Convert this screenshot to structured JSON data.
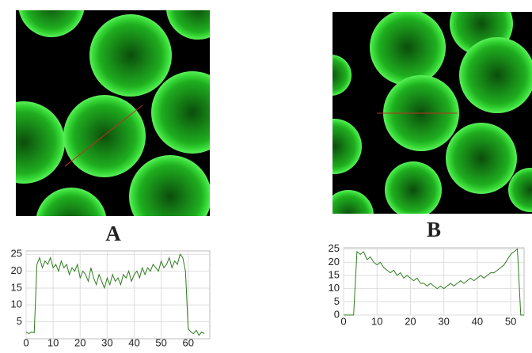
{
  "chart_data": [
    {
      "type": "line",
      "caption": "A",
      "color": "#2e7d1e",
      "x": [
        0,
        1,
        2,
        3,
        4,
        5,
        6,
        7,
        8,
        9,
        10,
        11,
        12,
        13,
        14,
        15,
        16,
        17,
        18,
        19,
        20,
        21,
        22,
        23,
        24,
        25,
        26,
        27,
        28,
        29,
        30,
        31,
        32,
        33,
        34,
        35,
        36,
        37,
        38,
        39,
        40,
        41,
        42,
        43,
        44,
        45,
        46,
        47,
        48,
        49,
        50,
        51,
        52,
        53,
        54,
        55,
        56,
        57,
        58,
        59,
        60,
        61,
        62,
        63,
        64,
        65,
        66
      ],
      "values": [
        2,
        1.5,
        2,
        1.8,
        22,
        24,
        21,
        23,
        22,
        24,
        21,
        22,
        20,
        23,
        21,
        22,
        19,
        21,
        20,
        22,
        18,
        20,
        19,
        17,
        21,
        18,
        16,
        19,
        17,
        15,
        18,
        16,
        19,
        17,
        18,
        16,
        19,
        18,
        20,
        17,
        19,
        20,
        18,
        21,
        19,
        21,
        20,
        22,
        21,
        20,
        23,
        21,
        22,
        24,
        21,
        23,
        22,
        25,
        24,
        20,
        3,
        2,
        1.5,
        2.5,
        1,
        2,
        1.5
      ],
      "xlim": [
        0,
        68
      ],
      "ylim": [
        0,
        26
      ],
      "xticks": [
        0,
        10,
        20,
        30,
        40,
        50,
        60
      ],
      "yticks": [
        5,
        10,
        15,
        20,
        25
      ],
      "grid": true
    },
    {
      "type": "line",
      "caption": "B",
      "color": "#2e7d1e",
      "x": [
        0,
        1,
        2,
        3,
        4,
        5,
        6,
        7,
        8,
        9,
        10,
        11,
        12,
        13,
        14,
        15,
        16,
        17,
        18,
        19,
        20,
        21,
        22,
        23,
        24,
        25,
        26,
        27,
        28,
        29,
        30,
        31,
        32,
        33,
        34,
        35,
        36,
        37,
        38,
        39,
        40,
        41,
        42,
        43,
        44,
        45,
        46,
        47,
        48,
        49,
        50,
        51,
        52,
        53,
        54
      ],
      "values": [
        0,
        0,
        0,
        0,
        24,
        23,
        24,
        21,
        22,
        20,
        19,
        20,
        18,
        17,
        16,
        17,
        15,
        16,
        14,
        15,
        14,
        13,
        14,
        12,
        12,
        11,
        12,
        11,
        10,
        11,
        10,
        11,
        12,
        11,
        12,
        13,
        12,
        13,
        14,
        13,
        14,
        15,
        14,
        15,
        16,
        16,
        17,
        18,
        19,
        21,
        23,
        24,
        25,
        0,
        0
      ],
      "xlim": [
        0,
        54
      ],
      "ylim": [
        0,
        25.5
      ],
      "xticks": [
        0,
        10,
        20,
        30,
        40,
        50
      ],
      "yticks": [
        0,
        5,
        10,
        15,
        20,
        25
      ],
      "grid": true
    }
  ]
}
